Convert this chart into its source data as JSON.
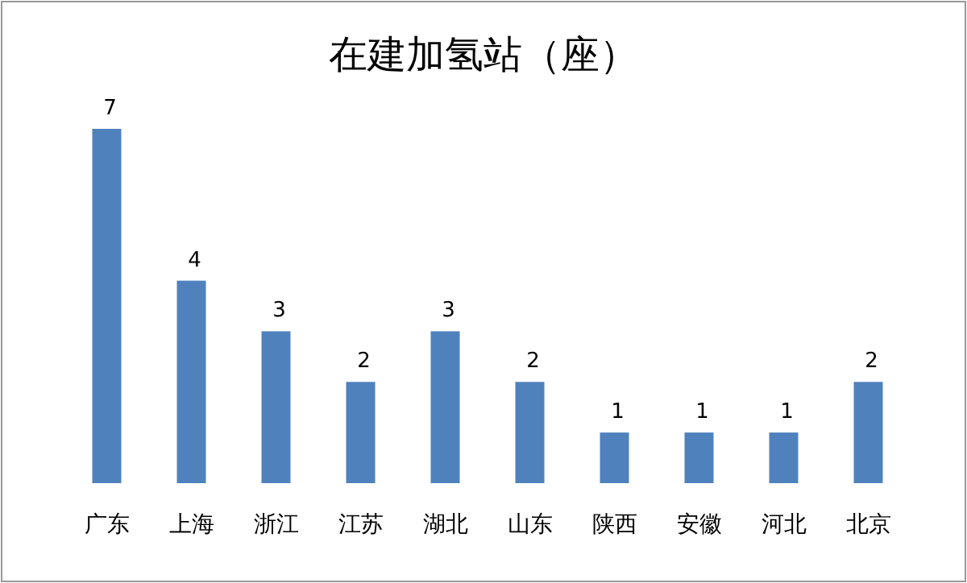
{
  "chart_data": {
    "type": "bar",
    "title": "在建加氢站（座）",
    "categories": [
      "广东",
      "上海",
      "浙江",
      "江苏",
      "湖北",
      "山东",
      "陕西",
      "安徽",
      "河北",
      "北京"
    ],
    "values": [
      7,
      4,
      3,
      2,
      3,
      2,
      1,
      1,
      1,
      2
    ],
    "color": "#4f81bd",
    "data_labels": true
  }
}
